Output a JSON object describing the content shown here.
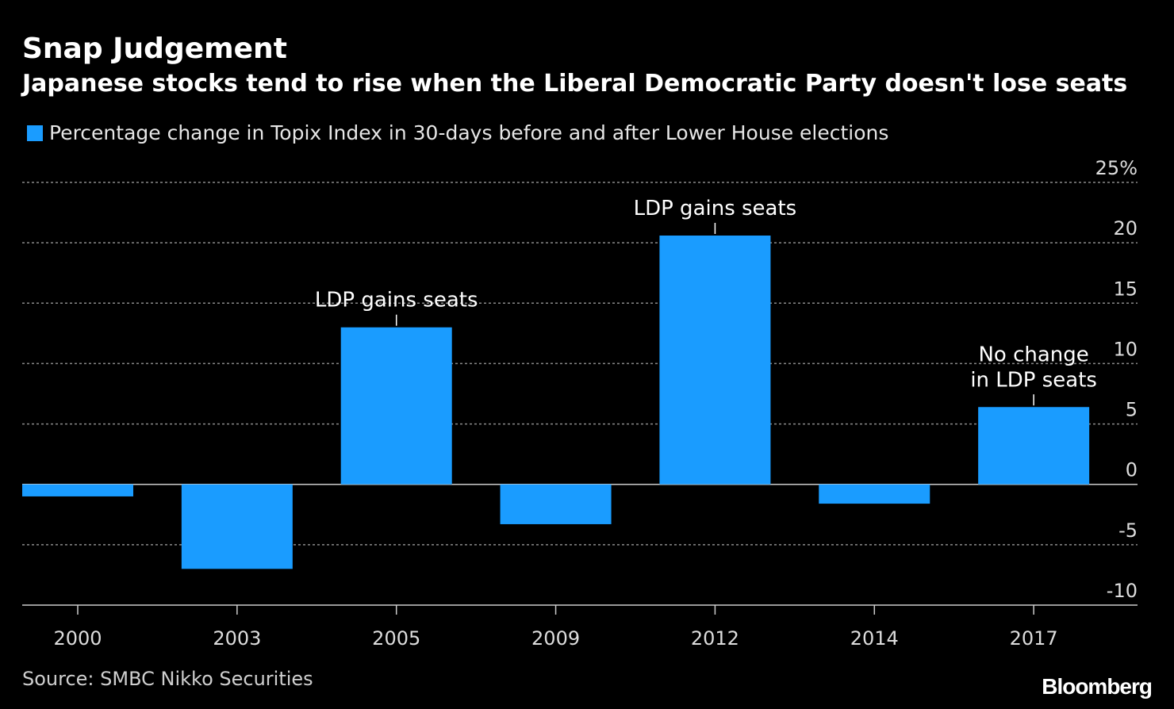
{
  "header": {
    "title": "Snap Judgement",
    "subtitle": "Japanese stocks tend to rise when the Liberal Democratic Party doesn't lose seats"
  },
  "legend": {
    "label": "Percentage change in Topix Index in 30-days before and after Lower House elections"
  },
  "footer": {
    "source": "Source: SMBC Nikko Securities",
    "brand": "Bloomberg"
  },
  "colors": {
    "background": "#000000",
    "bar": "#1a9cff",
    "grid": "#8a8a8a",
    "axis": "#cccccc",
    "text": "#ffffff"
  },
  "chart_data": {
    "type": "bar",
    "categories": [
      "2000",
      "2003",
      "2005",
      "2009",
      "2012",
      "2014",
      "2017"
    ],
    "values": [
      -1.0,
      -7.0,
      13.0,
      -3.3,
      20.6,
      -1.6,
      6.4
    ],
    "series": [
      {
        "name": "Percentage change in Topix Index in 30-days before and after Lower House elections",
        "values": [
          -1.0,
          -7.0,
          13.0,
          -3.3,
          20.6,
          -1.6,
          6.4
        ]
      }
    ],
    "title": "Snap Judgement",
    "subtitle": "Japanese stocks tend to rise when the Liberal Democratic Party doesn't lose seats",
    "ylim": [
      -10,
      25
    ],
    "ylabel": "",
    "xlabel": "",
    "y_ticks": [
      25,
      20,
      15,
      10,
      5,
      0,
      -5,
      -10
    ],
    "y_tick_labels": [
      "25%",
      "20",
      "15",
      "10",
      "5",
      "0",
      "-5",
      "-10"
    ],
    "grid": true,
    "y_axis_position": "right",
    "legend_position": "top-left",
    "annotations": [
      {
        "category": "2005",
        "lines": [
          "LDP gains seats"
        ]
      },
      {
        "category": "2012",
        "lines": [
          "LDP gains seats"
        ]
      },
      {
        "category": "2017",
        "lines": [
          "No change",
          "in LDP seats"
        ]
      }
    ]
  }
}
